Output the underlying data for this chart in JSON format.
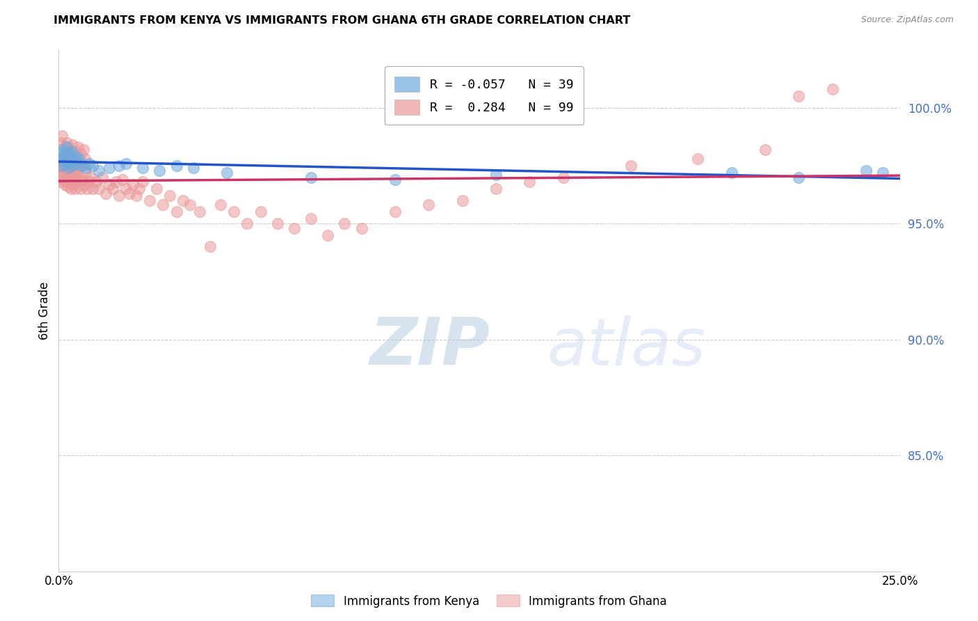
{
  "title": "IMMIGRANTS FROM KENYA VS IMMIGRANTS FROM GHANA 6TH GRADE CORRELATION CHART",
  "source": "Source: ZipAtlas.com",
  "ylabel": "6th Grade",
  "xlim": [
    0.0,
    25.0
  ],
  "ylim": [
    80.0,
    102.5
  ],
  "yticks": [
    85.0,
    90.0,
    95.0,
    100.0
  ],
  "ytick_labels": [
    "85.0%",
    "90.0%",
    "95.0%",
    "100.0%"
  ],
  "xticks": [
    0.0,
    5.0,
    10.0,
    15.0,
    20.0,
    25.0
  ],
  "xtick_labels": [
    "0.0%",
    "",
    "",
    "",
    "",
    "25.0%"
  ],
  "kenya_color": "#6fa8dc",
  "ghana_color": "#ea9999",
  "kenya_line_color": "#2255cc",
  "ghana_line_color": "#cc3366",
  "kenya_R": -0.057,
  "kenya_N": 39,
  "ghana_R": 0.284,
  "ghana_N": 99,
  "legend_label_kenya": "Immigrants from Kenya",
  "legend_label_ghana": "Immigrants from Ghana",
  "kenya_scatter_x": [
    0.05,
    0.08,
    0.1,
    0.12,
    0.15,
    0.18,
    0.2,
    0.22,
    0.25,
    0.28,
    0.3,
    0.32,
    0.35,
    0.38,
    0.4,
    0.45,
    0.5,
    0.55,
    0.6,
    0.7,
    0.8,
    0.9,
    1.0,
    1.2,
    1.5,
    1.8,
    2.0,
    2.5,
    3.0,
    3.5,
    4.0,
    5.0,
    7.5,
    10.0,
    13.0,
    20.0,
    22.0,
    24.0,
    24.5
  ],
  "kenya_scatter_y": [
    97.8,
    98.0,
    97.5,
    98.2,
    97.9,
    97.6,
    98.1,
    97.7,
    98.3,
    97.4,
    97.8,
    98.0,
    97.6,
    98.1,
    97.5,
    97.7,
    97.9,
    97.6,
    97.8,
    97.5,
    97.4,
    97.6,
    97.5,
    97.3,
    97.4,
    97.5,
    97.6,
    97.4,
    97.3,
    97.5,
    97.4,
    97.2,
    97.0,
    96.9,
    97.1,
    97.2,
    97.0,
    97.3,
    97.2
  ],
  "ghana_scatter_x": [
    0.02,
    0.04,
    0.06,
    0.08,
    0.1,
    0.12,
    0.14,
    0.16,
    0.18,
    0.2,
    0.22,
    0.24,
    0.26,
    0.28,
    0.3,
    0.32,
    0.34,
    0.36,
    0.38,
    0.4,
    0.42,
    0.44,
    0.46,
    0.48,
    0.5,
    0.55,
    0.6,
    0.65,
    0.7,
    0.75,
    0.8,
    0.85,
    0.9,
    0.95,
    1.0,
    1.1,
    1.2,
    1.3,
    1.4,
    1.5,
    1.6,
    1.7,
    1.8,
    1.9,
    2.0,
    2.1,
    2.2,
    2.3,
    2.4,
    2.5,
    2.7,
    2.9,
    3.1,
    3.3,
    3.5,
    3.7,
    3.9,
    4.2,
    4.5,
    4.8,
    5.2,
    5.6,
    6.0,
    6.5,
    7.0,
    7.5,
    8.0,
    8.5,
    9.0,
    10.0,
    11.0,
    12.0,
    13.0,
    14.0,
    15.0,
    17.0,
    19.0,
    21.0,
    22.0,
    23.0,
    0.05,
    0.09,
    0.13,
    0.17,
    0.21,
    0.25,
    0.29,
    0.33,
    0.37,
    0.41,
    0.45,
    0.49,
    0.53,
    0.57,
    0.61,
    0.65,
    0.69,
    0.73,
    0.77
  ],
  "ghana_scatter_y": [
    97.5,
    97.2,
    96.8,
    97.0,
    97.3,
    97.1,
    96.9,
    97.4,
    96.7,
    97.2,
    97.0,
    96.8,
    97.3,
    96.6,
    97.1,
    96.9,
    97.4,
    96.5,
    97.0,
    96.8,
    97.2,
    96.7,
    97.3,
    96.5,
    97.1,
    96.8,
    97.0,
    96.5,
    96.9,
    96.7,
    97.2,
    96.5,
    96.8,
    97.0,
    96.5,
    96.8,
    96.5,
    97.0,
    96.3,
    96.7,
    96.5,
    96.8,
    96.2,
    96.9,
    96.5,
    96.3,
    96.7,
    96.2,
    96.5,
    96.8,
    96.0,
    96.5,
    95.8,
    96.2,
    95.5,
    96.0,
    95.8,
    95.5,
    94.0,
    95.8,
    95.5,
    95.0,
    95.5,
    95.0,
    94.8,
    95.2,
    94.5,
    95.0,
    94.8,
    95.5,
    95.8,
    96.0,
    96.5,
    96.8,
    97.0,
    97.5,
    97.8,
    98.2,
    100.5,
    100.8,
    98.5,
    98.8,
    97.8,
    98.3,
    98.0,
    98.5,
    97.8,
    98.2,
    97.9,
    98.4,
    97.6,
    98.1,
    97.7,
    98.3,
    97.5,
    98.0,
    97.6,
    98.2,
    97.8
  ]
}
